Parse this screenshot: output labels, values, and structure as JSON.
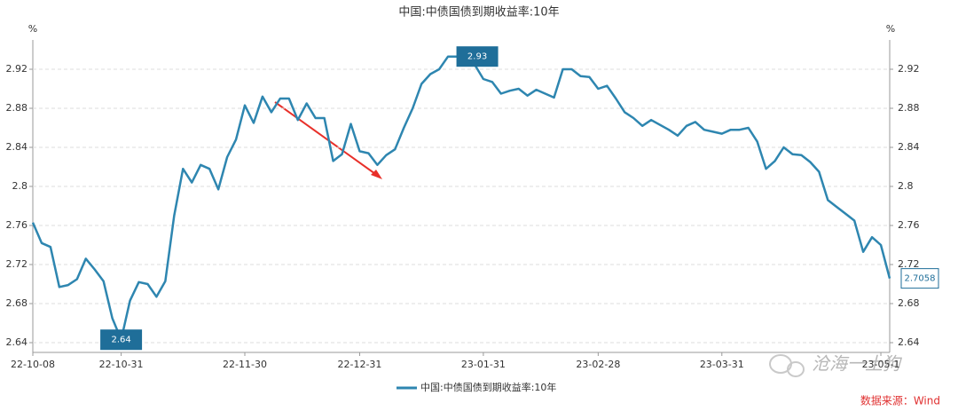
{
  "chart_data": {
    "type": "line",
    "title": "中国:中债国债到期收益率:10年",
    "y_unit": "%",
    "y2_unit": "%",
    "categories": [
      "22-10-08",
      null,
      null,
      null,
      null,
      null,
      null,
      null,
      null,
      null,
      "22-10-31",
      null,
      null,
      null,
      null,
      null,
      null,
      null,
      null,
      null,
      null,
      null,
      null,
      null,
      "22-11-30",
      null,
      null,
      null,
      null,
      null,
      null,
      null,
      null,
      null,
      null,
      null,
      null,
      "22-12-31",
      null,
      null,
      null,
      null,
      null,
      null,
      null,
      null,
      null,
      null,
      null,
      null,
      null,
      "23-01-31",
      null,
      null,
      null,
      null,
      null,
      null,
      null,
      null,
      null,
      null,
      null,
      null,
      "23-02-28",
      null,
      null,
      null,
      null,
      null,
      null,
      null,
      null,
      null,
      null,
      null,
      null,
      null,
      "23-03-31",
      null,
      null,
      null,
      null,
      null,
      null,
      null,
      null,
      null,
      null,
      null,
      null,
      null,
      null,
      null,
      null,
      null,
      "23-05-1",
      null
    ],
    "series": [
      {
        "name": "中国:中债国债到期收益率:10年",
        "color": "#2e86b0",
        "values": [
          2.763,
          2.742,
          2.738,
          2.697,
          2.699,
          2.705,
          2.726,
          2.715,
          2.703,
          2.665,
          2.643,
          2.683,
          2.702,
          2.7,
          2.687,
          2.703,
          2.77,
          2.818,
          2.804,
          2.822,
          2.818,
          2.797,
          2.83,
          2.848,
          2.883,
          2.865,
          2.892,
          2.876,
          2.89,
          2.89,
          2.868,
          2.885,
          2.87,
          2.87,
          2.826,
          2.833,
          2.864,
          2.836,
          2.834,
          2.822,
          2.832,
          2.838,
          2.86,
          2.88,
          2.905,
          2.915,
          2.92,
          2.933,
          2.933,
          2.933,
          2.925,
          2.91,
          2.907,
          2.895,
          2.898,
          2.9,
          2.893,
          2.899,
          2.895,
          2.891,
          2.92,
          2.92,
          2.913,
          2.912,
          2.9,
          2.903,
          2.89,
          2.876,
          2.87,
          2.862,
          2.868,
          2.863,
          2.858,
          2.852,
          2.862,
          2.866,
          2.858,
          2.856,
          2.854,
          2.858,
          2.858,
          2.86,
          2.846,
          2.818,
          2.826,
          2.84,
          2.833,
          2.832,
          2.825,
          2.815,
          2.786,
          2.779,
          2.772,
          2.765,
          2.733,
          2.748,
          2.74,
          2.7058
        ]
      }
    ],
    "max_label": 2.93,
    "min_label": 2.64,
    "last_label": 2.7058,
    "ylim": [
      2.63,
      2.95
    ],
    "yticks": [
      2.64,
      2.68,
      2.72,
      2.76,
      2.8,
      2.84,
      2.88,
      2.92
    ],
    "y2lim": [
      2.63,
      2.95
    ],
    "y2ticks": [
      2.64,
      2.68,
      2.72,
      2.76,
      2.8,
      2.84,
      2.88,
      2.92
    ],
    "grid": true,
    "watermark": "沧海一土狗",
    "source": "数据来源：Wind"
  }
}
